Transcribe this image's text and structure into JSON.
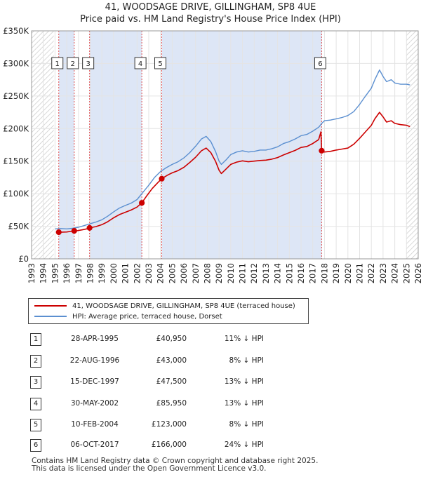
{
  "title_line1": "41, WOODSAGE DRIVE, GILLINGHAM, SP8 4UE",
  "title_line2": "Price paid vs. HM Land Registry's House Price Index (HPI)",
  "colors": {
    "red": "#cc0000",
    "blue": "#5b8fd0",
    "shade": "#dde6f6",
    "hatch": "#c8c8c8",
    "vline": "#e05050",
    "grid": "#e4e4e4"
  },
  "legend": {
    "red_label": "41, WOODSAGE DRIVE, GILLINGHAM, SP8 4UE (terraced house)",
    "blue_label": "HPI: Average price, terraced house, Dorset"
  },
  "transactions": [
    {
      "num": "1",
      "date": "28-APR-1995",
      "price": "£40,950",
      "pct": "11% ↓ HPI"
    },
    {
      "num": "2",
      "date": "22-AUG-1996",
      "price": "£43,000",
      "pct": "8% ↓ HPI"
    },
    {
      "num": "3",
      "date": "15-DEC-1997",
      "price": "£47,500",
      "pct": "13% ↓ HPI"
    },
    {
      "num": "4",
      "date": "30-MAY-2002",
      "price": "£85,950",
      "pct": "13% ↓ HPI"
    },
    {
      "num": "5",
      "date": "10-FEB-2004",
      "price": "£123,000",
      "pct": "8% ↓ HPI"
    },
    {
      "num": "6",
      "date": "06-OCT-2017",
      "price": "£166,000",
      "pct": "24% ↓ HPI"
    }
  ],
  "footer_line1": "Contains HM Land Registry data © Crown copyright and database right 2025.",
  "footer_line2": "This data is licensed under the Open Government Licence v3.0.",
  "chart_data": {
    "type": "line",
    "title": "41, WOODSAGE DRIVE, GILLINGHAM, SP8 4UE",
    "subtitle": "Price paid vs. HM Land Registry's House Price Index (HPI)",
    "xlabel": "",
    "ylabel": "",
    "xlim": [
      1993,
      2026
    ],
    "ylim": [
      0,
      350000
    ],
    "xticks": [
      1993,
      1994,
      1995,
      1996,
      1997,
      1998,
      1999,
      2000,
      2001,
      2002,
      2003,
      2004,
      2005,
      2006,
      2007,
      2008,
      2009,
      2010,
      2011,
      2012,
      2013,
      2014,
      2015,
      2016,
      2017,
      2018,
      2019,
      2020,
      2021,
      2022,
      2023,
      2024,
      2025,
      2026
    ],
    "yticks": [
      0,
      50000,
      100000,
      150000,
      200000,
      250000,
      300000,
      350000
    ],
    "ytick_labels": [
      "£0",
      "£50K",
      "£100K",
      "£150K",
      "£200K",
      "£250K",
      "£300K",
      "£350K"
    ],
    "grid": true,
    "shaded_ranges": [
      [
        1995.32,
        1996.64
      ],
      [
        1997.95,
        2002.41
      ],
      [
        2004.11,
        2017.76
      ]
    ],
    "hatched_ranges": [
      [
        1993,
        1994.9
      ],
      [
        2025.0,
        2026
      ]
    ],
    "series": [
      {
        "name": "HPI: Average price, terraced house, Dorset",
        "color": "blue",
        "x": [
          1995.0,
          1995.5,
          1996.0,
          1996.5,
          1997.0,
          1997.5,
          1998.0,
          1998.5,
          1999.0,
          1999.5,
          2000.0,
          2000.5,
          2001.0,
          2001.5,
          2002.0,
          2002.5,
          2003.0,
          2003.5,
          2004.0,
          2004.5,
          2005.0,
          2005.5,
          2006.0,
          2006.5,
          2007.0,
          2007.5,
          2007.9,
          2008.3,
          2008.7,
          2009.0,
          2009.2,
          2009.6,
          2010.0,
          2010.5,
          2011.0,
          2011.5,
          2012.0,
          2012.5,
          2013.0,
          2013.5,
          2014.0,
          2014.5,
          2015.0,
          2015.5,
          2016.0,
          2016.5,
          2017.0,
          2017.5,
          2017.77,
          2018.0,
          2018.5,
          2019.0,
          2019.5,
          2020.0,
          2020.5,
          2021.0,
          2021.5,
          2022.0,
          2022.3,
          2022.7,
          2023.0,
          2023.3,
          2023.7,
          2024.0,
          2024.5,
          2025.0,
          2025.3
        ],
        "values": [
          46000,
          46500,
          46000,
          47000,
          48500,
          51000,
          54000,
          56500,
          60000,
          65500,
          72000,
          78000,
          82000,
          85500,
          91000,
          102000,
          113000,
          125000,
          134000,
          140000,
          145000,
          149000,
          155000,
          163000,
          173000,
          184000,
          188000,
          180000,
          165000,
          150000,
          145000,
          152000,
          160000,
          164000,
          166000,
          164000,
          165000,
          167000,
          167000,
          169000,
          172000,
          177000,
          180000,
          184000,
          189000,
          191000,
          196000,
          202000,
          208000,
          212000,
          213000,
          215000,
          217000,
          220000,
          226000,
          237000,
          250000,
          262000,
          275000,
          290000,
          280000,
          272000,
          275000,
          270000,
          268000,
          268000,
          267000
        ]
      },
      {
        "name": "41, WOODSAGE DRIVE, GILLINGHAM, SP8 4UE (terraced house)",
        "color": "red",
        "x": [
          1995.32,
          1995.6,
          1996.0,
          1996.5,
          1996.64,
          1996.9,
          1997.3,
          1997.7,
          1997.95,
          1998.5,
          1999.0,
          1999.5,
          2000.0,
          2000.5,
          2001.0,
          2001.5,
          2002.0,
          2002.41,
          2002.8,
          2003.3,
          2003.8,
          2004.11,
          2004.6,
          2005.0,
          2005.5,
          2006.0,
          2006.5,
          2007.0,
          2007.5,
          2007.9,
          2008.3,
          2008.7,
          2009.0,
          2009.2,
          2009.6,
          2010.0,
          2010.5,
          2011.0,
          2011.5,
          2012.0,
          2012.5,
          2013.0,
          2013.5,
          2014.0,
          2014.5,
          2015.0,
          2015.5,
          2016.0,
          2016.5,
          2017.0,
          2017.5,
          2017.7,
          2017.76,
          2018.0,
          2018.5,
          2019.0,
          2019.5,
          2020.0,
          2020.5,
          2021.0,
          2021.5,
          2022.0,
          2022.3,
          2022.7,
          2023.0,
          2023.3,
          2023.7,
          2024.0,
          2024.5,
          2025.0,
          2025.3
        ],
        "values": [
          40950,
          41000,
          41200,
          42500,
          43000,
          43200,
          44500,
          46000,
          47500,
          49500,
          52500,
          57000,
          63000,
          68000,
          71500,
          75000,
          79500,
          85950,
          96000,
          108000,
          117500,
          123000,
          128500,
          132000,
          135500,
          140500,
          148000,
          156000,
          166000,
          170000,
          163000,
          150000,
          136000,
          131000,
          138000,
          145000,
          148500,
          150500,
          149000,
          150000,
          151000,
          151500,
          153000,
          155500,
          159500,
          163000,
          166500,
          171000,
          172500,
          177000,
          183000,
          195000,
          166000,
          164000,
          165000,
          167000,
          168500,
          170000,
          176000,
          185000,
          195000,
          205000,
          215000,
          225000,
          218000,
          210000,
          212000,
          208000,
          206000,
          205000,
          203000
        ]
      }
    ],
    "transactions": [
      {
        "label": "1",
        "x": 1995.32,
        "value": 40950
      },
      {
        "label": "2",
        "x": 1996.64,
        "value": 43000
      },
      {
        "label": "3",
        "x": 1997.95,
        "value": 47500
      },
      {
        "label": "4",
        "x": 2002.41,
        "value": 85950
      },
      {
        "label": "5",
        "x": 2004.11,
        "value": 123000
      },
      {
        "label": "6",
        "x": 2017.76,
        "value": 166000
      }
    ]
  }
}
